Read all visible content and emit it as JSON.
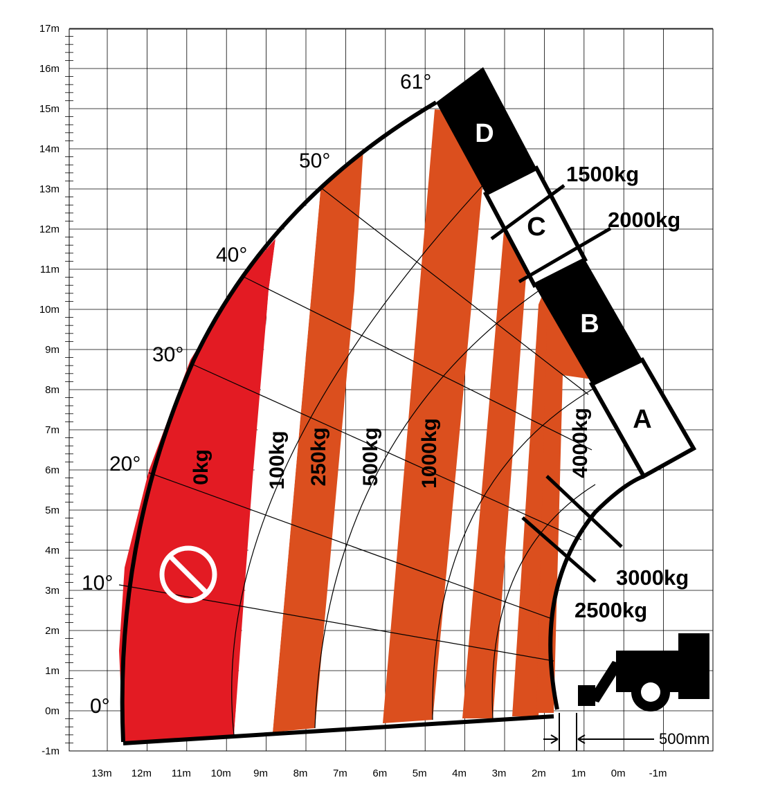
{
  "x_ticks": [
    "13m",
    "12m",
    "11m",
    "10m",
    "9m",
    "8m",
    "7m",
    "6m",
    "5m",
    "4m",
    "3m",
    "2m",
    "1m",
    "0m",
    "-1m"
  ],
  "y_ticks": [
    "-1m",
    "0m",
    "1m",
    "2m",
    "3m",
    "4m",
    "5m",
    "6m",
    "7m",
    "8m",
    "9m",
    "10m",
    "11m",
    "12m",
    "13m",
    "14m",
    "15m",
    "16m",
    "17m"
  ],
  "angles": [
    "0°",
    "10°",
    "20°",
    "30°",
    "40°",
    "50°",
    "61°"
  ],
  "zones": {
    "no_load": "0kg",
    "z100": "100kg",
    "z250": "250kg",
    "z500": "500kg",
    "z1000": "1000kg",
    "z4000": "4000kg"
  },
  "loads": {
    "l1500": "1500kg",
    "l2000": "2000kg",
    "l3000": "3000kg",
    "l2500": "2500kg"
  },
  "boom_sections": [
    "A",
    "B",
    "C",
    "D"
  ],
  "dimension": "500mm",
  "colors": {
    "red_zone": "#E31B23",
    "orange_zone": "#DB4F1E",
    "boom_black": "#000000",
    "grid": "#000000"
  },
  "icons": {
    "prohibited": "prohibited-icon",
    "vehicle": "telehandler-icon"
  }
}
